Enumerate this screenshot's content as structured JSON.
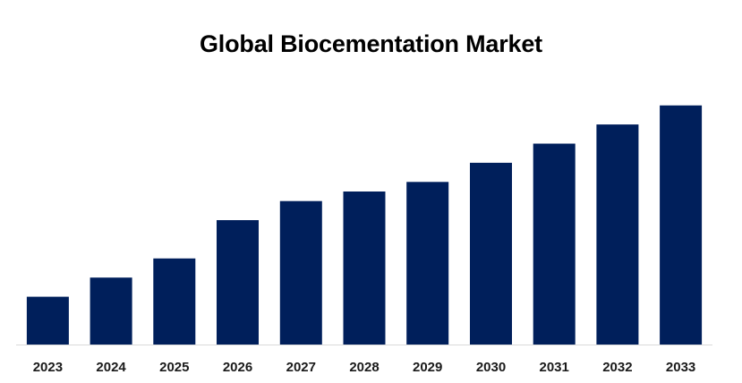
{
  "chart_data": {
    "type": "bar",
    "title": "Global Biocementation Market",
    "categories": [
      "2023",
      "2024",
      "2025",
      "2026",
      "2027",
      "2028",
      "2029",
      "2030",
      "2031",
      "2032",
      "2033"
    ],
    "values": [
      2.5,
      3.5,
      4.5,
      6.5,
      7.5,
      8.0,
      8.5,
      9.5,
      10.5,
      11.5,
      12.5
    ],
    "xlabel": "",
    "ylabel": "",
    "ylim": [
      0,
      14.5
    ],
    "grid": false,
    "legend": "none",
    "bar_color": "#001f5b",
    "axis_color": "#d9d9d9"
  }
}
